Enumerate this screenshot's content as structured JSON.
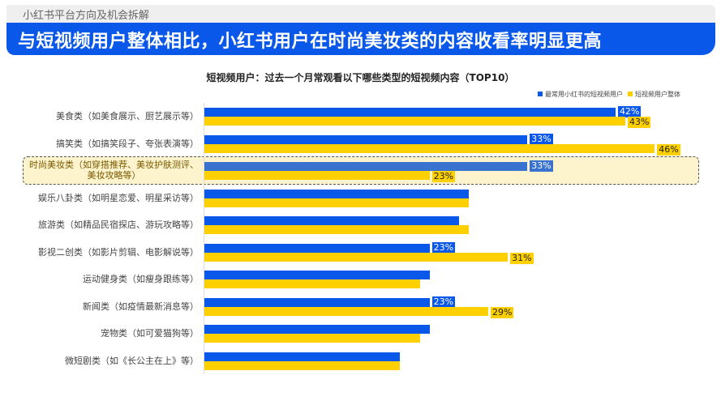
{
  "header": {
    "section": "小红书平台方向及机会拆解",
    "headline": "与短视频用户整体相比，小红书用户在时尚美妆类的内容收看率明显更高"
  },
  "chart_data": {
    "type": "bar",
    "orientation": "horizontal",
    "title": "短视频用户：过去一个月常观看以下哪些类型的短视频内容（TOP10）",
    "unit": "%",
    "legend_position": "top-right",
    "highlighted_category": "时尚美妆类（如穿搭推荐、美妆护肤测评、美妆攻略等）",
    "colors": {
      "series1": "#0a58ea",
      "series1_highlight": "#3a72cf",
      "series2": "#ffd000"
    },
    "categories": [
      "美食类（如美食展示、厨艺展示等）",
      "搞笑类（如搞笑段子、夸张表演等）",
      "时尚美妆类（如穿搭推荐、美妆护肤测评、美妆攻略等）",
      "娱乐八卦类（如明星恋爱、明星采访等）",
      "旅游类（如精品民宿探店、游玩攻略等）",
      "影视二创类（如影片剪辑、电影解说等）",
      "运动健身类（如瘦身跟练等）",
      "新闻类（如疫情最新消息等）",
      "宠物类（如可爱猫狗等）",
      "微短剧类（如《长公主在上》等）"
    ],
    "series": [
      {
        "name": "最常用小红书的短视频用户",
        "values": [
          42,
          33,
          33,
          27,
          26,
          23,
          23,
          23,
          23,
          20
        ],
        "labeled": [
          true,
          true,
          true,
          false,
          false,
          true,
          false,
          true,
          false,
          false
        ]
      },
      {
        "name": "短视频用户整体",
        "values": [
          43,
          46,
          23,
          27,
          27,
          31,
          22,
          29,
          22,
          20
        ],
        "labeled": [
          true,
          true,
          true,
          false,
          false,
          true,
          false,
          true,
          false,
          false
        ]
      }
    ]
  }
}
